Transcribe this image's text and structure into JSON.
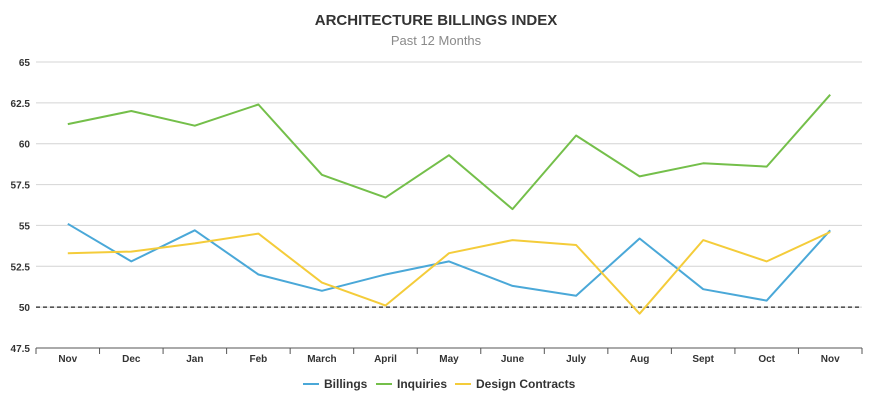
{
  "chart_data": {
    "type": "line",
    "title": "ARCHITECTURE BILLINGS INDEX",
    "subtitle": "Past 12 Months",
    "categories": [
      "Nov",
      "Dec",
      "Jan",
      "Feb",
      "March",
      "April",
      "May",
      "June",
      "July",
      "Aug",
      "Sept",
      "Oct",
      "Nov"
    ],
    "ylim": [
      47.5,
      65
    ],
    "yticks": [
      "47.5",
      "50",
      "52.5",
      "55",
      "57.5",
      "60",
      "62.5",
      "65"
    ],
    "reference_line": 50,
    "grid": true,
    "legend_position": "bottom",
    "series": [
      {
        "name": "Billings",
        "color": "#4aa8d8",
        "values": [
          55.1,
          52.8,
          54.7,
          52.0,
          51.0,
          52.0,
          52.8,
          51.3,
          50.7,
          54.2,
          51.1,
          50.4,
          54.7
        ]
      },
      {
        "name": "Inquiries",
        "color": "#74bf4a",
        "values": [
          61.2,
          62.0,
          61.1,
          62.4,
          58.1,
          56.7,
          59.3,
          56.0,
          60.5,
          58.0,
          58.8,
          58.6,
          63.0
        ]
      },
      {
        "name": "Design Contracts",
        "color": "#f4cc3a",
        "values": [
          53.3,
          53.4,
          53.9,
          54.5,
          51.5,
          50.1,
          53.3,
          54.1,
          53.8,
          49.6,
          54.1,
          52.8,
          54.6
        ]
      }
    ]
  }
}
